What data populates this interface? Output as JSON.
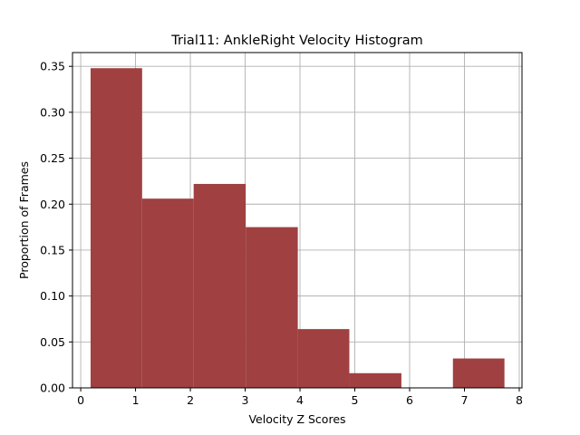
{
  "chart_data": {
    "type": "bar",
    "title": "Trial11: AnkleRight Velocity Histogram",
    "xlabel": "Velocity Z Scores",
    "ylabel": "Proportion of Frames",
    "xlim": [
      -0.15,
      8.05
    ],
    "ylim": [
      0,
      0.365
    ],
    "xticks": [
      0,
      1,
      2,
      3,
      4,
      5,
      6,
      7,
      8
    ],
    "xtick_labels": [
      "0",
      "1",
      "2",
      "3",
      "4",
      "5",
      "6",
      "7",
      "8"
    ],
    "yticks": [
      0,
      0.05,
      0.1,
      0.15,
      0.2,
      0.25,
      0.3,
      0.35
    ],
    "ytick_labels": [
      "0.00",
      "0.05",
      "0.10",
      "0.15",
      "0.20",
      "0.25",
      "0.30",
      "0.35"
    ],
    "grid": true,
    "bar_color": "#a04040",
    "grid_color": "#b0b0b0",
    "bins": [
      {
        "x0": 0.18,
        "x1": 1.12,
        "value": 0.348
      },
      {
        "x0": 1.12,
        "x1": 2.06,
        "value": 0.206
      },
      {
        "x0": 2.06,
        "x1": 3.01,
        "value": 0.222
      },
      {
        "x0": 3.01,
        "x1": 3.96,
        "value": 0.175
      },
      {
        "x0": 3.96,
        "x1": 4.9,
        "value": 0.064
      },
      {
        "x0": 4.9,
        "x1": 5.85,
        "value": 0.016
      },
      {
        "x0": 5.85,
        "x1": 6.79,
        "value": 0.0
      },
      {
        "x0": 6.79,
        "x1": 7.73,
        "value": 0.032
      }
    ]
  }
}
